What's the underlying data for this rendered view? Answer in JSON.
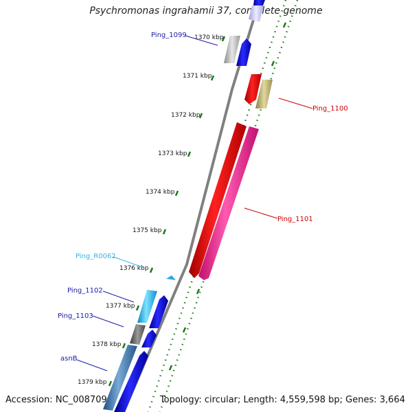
{
  "title": "Psychromonas ingrahamii 37, complete genome",
  "footer": {
    "accession": "Accession: NC_008709",
    "summary": "Topology: circular; Length: 4,559,598 bp; Genes: 3,664"
  },
  "ticks": [
    "1370 kbp",
    "1371 kbp",
    "1372 kbp",
    "1373 kbp",
    "1374 kbp",
    "1375 kbp",
    "1376 kbp",
    "1377 kbp",
    "1378 kbp",
    "1379 kbp"
  ],
  "gene_labels": {
    "ping_1099": "Ping_1099",
    "ping_1100": "Ping_1100",
    "ping_1101": "Ping_1101",
    "ping_r0062": "Ping_R0062",
    "ping_1102": "Ping_1102",
    "ping_1103": "Ping_1103",
    "asnb": "asnB"
  },
  "colors": {
    "label_blue": "#1a1aa8",
    "label_red": "#cc0000",
    "label_cyan": "#33b5e5",
    "tick_green": "#1a7a1a",
    "backbone": "#888888"
  }
}
